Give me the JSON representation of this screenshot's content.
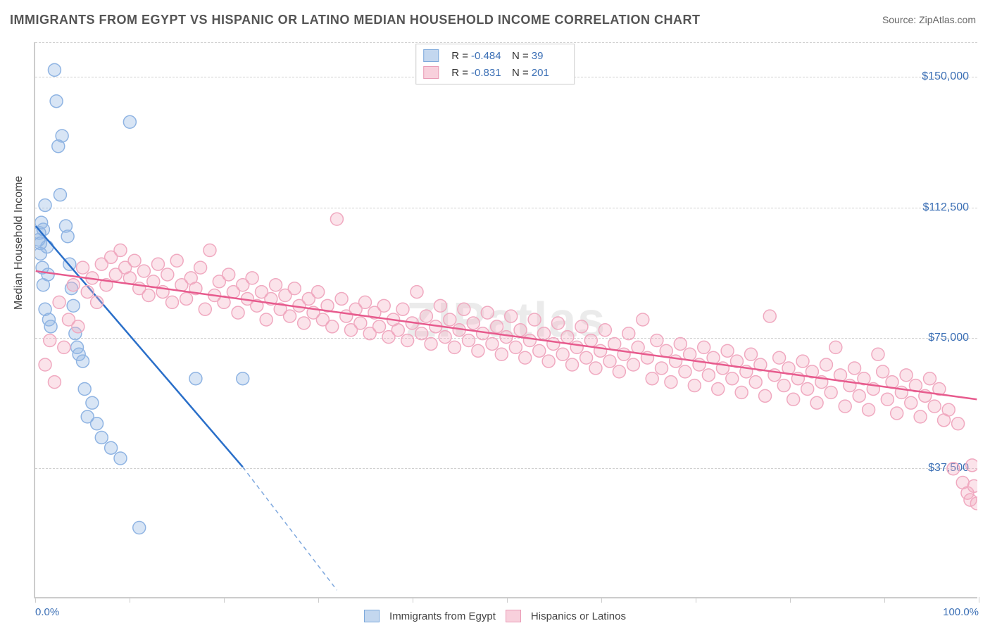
{
  "title": "IMMIGRANTS FROM EGYPT VS HISPANIC OR LATINO MEDIAN HOUSEHOLD INCOME CORRELATION CHART",
  "source": "Source: ZipAtlas.com",
  "watermark": "ZIPatlas",
  "y_axis_label": "Median Household Income",
  "chart": {
    "type": "scatter-with-regression",
    "background_color": "#ffffff",
    "grid_color": "#d0d0d0",
    "axis_color": "#cccccc",
    "label_color": "#3b6fb5",
    "x_min": 0,
    "x_max": 100,
    "y_min": 0,
    "y_max": 160000,
    "y_ticks": [
      37500,
      75000,
      112500,
      150000
    ],
    "y_tick_labels": [
      "$37,500",
      "$75,000",
      "$112,500",
      "$150,000"
    ],
    "x_ticks": [
      0,
      10,
      20,
      30,
      40,
      50,
      60,
      70,
      80,
      90,
      100
    ],
    "x_tick_labels_shown": {
      "0": "0.0%",
      "100": "100.0%"
    },
    "marker_radius": 9,
    "marker_stroke_width": 1.5,
    "series": [
      {
        "name": "Immigrants from Egypt",
        "color_fill": "rgba(142,180,227,0.35)",
        "color_stroke": "#8fb4e3",
        "swatch_fill": "#c3d7ef",
        "swatch_border": "#7da9db",
        "R": "-0.484",
        "N": "39",
        "regression_color": "#2a6fc9",
        "regression": {
          "x1": 0,
          "y1": 107000,
          "x2": 22,
          "y2": 37500,
          "dash_extend_x": 32,
          "dash_extend_y": 2000
        },
        "points": [
          [
            0.3,
            103000
          ],
          [
            0.4,
            105000
          ],
          [
            0.5,
            99000
          ],
          [
            0.5,
            102000
          ],
          [
            0.6,
            108000
          ],
          [
            0.7,
            95000
          ],
          [
            0.8,
            106000
          ],
          [
            0.8,
            90000
          ],
          [
            1.0,
            113000
          ],
          [
            1.2,
            101000
          ],
          [
            1.3,
            93000
          ],
          [
            1.0,
            83000
          ],
          [
            1.4,
            80000
          ],
          [
            1.6,
            78000
          ],
          [
            2.0,
            152000
          ],
          [
            2.2,
            143000
          ],
          [
            2.4,
            130000
          ],
          [
            2.6,
            116000
          ],
          [
            2.8,
            133000
          ],
          [
            3.2,
            107000
          ],
          [
            3.4,
            104000
          ],
          [
            3.6,
            96000
          ],
          [
            3.8,
            89000
          ],
          [
            4.0,
            84000
          ],
          [
            4.2,
            76000
          ],
          [
            4.4,
            72000
          ],
          [
            4.6,
            70000
          ],
          [
            5.0,
            68000
          ],
          [
            5.2,
            60000
          ],
          [
            5.5,
            52000
          ],
          [
            6.0,
            56000
          ],
          [
            6.5,
            50000
          ],
          [
            7.0,
            46000
          ],
          [
            8.0,
            43000
          ],
          [
            9.0,
            40000
          ],
          [
            10.0,
            137000
          ],
          [
            11.0,
            20000
          ],
          [
            17.0,
            63000
          ],
          [
            22.0,
            63000
          ]
        ]
      },
      {
        "name": "Hispanics or Latinos",
        "color_fill": "rgba(244,174,196,0.35)",
        "color_stroke": "#f0a9c0",
        "swatch_fill": "#f8d0dc",
        "swatch_border": "#e99bb6",
        "R": "-0.831",
        "N": "201",
        "regression_color": "#e75a8d",
        "regression": {
          "x1": 0,
          "y1": 94000,
          "x2": 100,
          "y2": 57000
        },
        "points": [
          [
            1.0,
            67000
          ],
          [
            1.5,
            74000
          ],
          [
            2.0,
            62000
          ],
          [
            2.5,
            85000
          ],
          [
            3.0,
            72000
          ],
          [
            3.5,
            80000
          ],
          [
            4.0,
            90000
          ],
          [
            4.5,
            78000
          ],
          [
            5.0,
            95000
          ],
          [
            5.5,
            88000
          ],
          [
            6.0,
            92000
          ],
          [
            6.5,
            85000
          ],
          [
            7.0,
            96000
          ],
          [
            7.5,
            90000
          ],
          [
            8.0,
            98000
          ],
          [
            8.5,
            93000
          ],
          [
            9.0,
            100000
          ],
          [
            9.5,
            95000
          ],
          [
            10.0,
            92000
          ],
          [
            10.5,
            97000
          ],
          [
            11.0,
            89000
          ],
          [
            11.5,
            94000
          ],
          [
            12.0,
            87000
          ],
          [
            12.5,
            91000
          ],
          [
            13.0,
            96000
          ],
          [
            13.5,
            88000
          ],
          [
            14.0,
            93000
          ],
          [
            14.5,
            85000
          ],
          [
            15.0,
            97000
          ],
          [
            15.5,
            90000
          ],
          [
            16.0,
            86000
          ],
          [
            16.5,
            92000
          ],
          [
            17.0,
            89000
          ],
          [
            17.5,
            95000
          ],
          [
            18.0,
            83000
          ],
          [
            18.5,
            100000
          ],
          [
            19.0,
            87000
          ],
          [
            19.5,
            91000
          ],
          [
            20.0,
            85000
          ],
          [
            20.5,
            93000
          ],
          [
            21.0,
            88000
          ],
          [
            21.5,
            82000
          ],
          [
            22.0,
            90000
          ],
          [
            22.5,
            86000
          ],
          [
            23.0,
            92000
          ],
          [
            23.5,
            84000
          ],
          [
            24.0,
            88000
          ],
          [
            24.5,
            80000
          ],
          [
            25.0,
            86000
          ],
          [
            25.5,
            90000
          ],
          [
            26.0,
            83000
          ],
          [
            26.5,
            87000
          ],
          [
            27.0,
            81000
          ],
          [
            27.5,
            89000
          ],
          [
            28.0,
            84000
          ],
          [
            28.5,
            79000
          ],
          [
            29.0,
            86000
          ],
          [
            29.5,
            82000
          ],
          [
            30.0,
            88000
          ],
          [
            30.5,
            80000
          ],
          [
            31.0,
            84000
          ],
          [
            31.5,
            78000
          ],
          [
            32.0,
            109000
          ],
          [
            32.5,
            86000
          ],
          [
            33.0,
            81000
          ],
          [
            33.5,
            77000
          ],
          [
            34.0,
            83000
          ],
          [
            34.5,
            79000
          ],
          [
            35.0,
            85000
          ],
          [
            35.5,
            76000
          ],
          [
            36.0,
            82000
          ],
          [
            36.5,
            78000
          ],
          [
            37.0,
            84000
          ],
          [
            37.5,
            75000
          ],
          [
            38.0,
            80000
          ],
          [
            38.5,
            77000
          ],
          [
            39.0,
            83000
          ],
          [
            39.5,
            74000
          ],
          [
            40.0,
            79000
          ],
          [
            40.5,
            88000
          ],
          [
            41.0,
            76000
          ],
          [
            41.5,
            81000
          ],
          [
            42.0,
            73000
          ],
          [
            42.5,
            78000
          ],
          [
            43.0,
            84000
          ],
          [
            43.5,
            75000
          ],
          [
            44.0,
            80000
          ],
          [
            44.5,
            72000
          ],
          [
            45.0,
            77000
          ],
          [
            45.5,
            83000
          ],
          [
            46.0,
            74000
          ],
          [
            46.5,
            79000
          ],
          [
            47.0,
            71000
          ],
          [
            47.5,
            76000
          ],
          [
            48.0,
            82000
          ],
          [
            48.5,
            73000
          ],
          [
            49.0,
            78000
          ],
          [
            49.5,
            70000
          ],
          [
            50.0,
            75000
          ],
          [
            50.5,
            81000
          ],
          [
            51.0,
            72000
          ],
          [
            51.5,
            77000
          ],
          [
            52.0,
            69000
          ],
          [
            52.5,
            74000
          ],
          [
            53.0,
            80000
          ],
          [
            53.5,
            71000
          ],
          [
            54.0,
            76000
          ],
          [
            54.5,
            68000
          ],
          [
            55.0,
            73000
          ],
          [
            55.5,
            79000
          ],
          [
            56.0,
            70000
          ],
          [
            56.5,
            75000
          ],
          [
            57.0,
            67000
          ],
          [
            57.5,
            72000
          ],
          [
            58.0,
            78000
          ],
          [
            58.5,
            69000
          ],
          [
            59.0,
            74000
          ],
          [
            59.5,
            66000
          ],
          [
            60.0,
            71000
          ],
          [
            60.5,
            77000
          ],
          [
            61.0,
            68000
          ],
          [
            61.5,
            73000
          ],
          [
            62.0,
            65000
          ],
          [
            62.5,
            70000
          ],
          [
            63.0,
            76000
          ],
          [
            63.5,
            67000
          ],
          [
            64.0,
            72000
          ],
          [
            64.5,
            80000
          ],
          [
            65.0,
            69000
          ],
          [
            65.5,
            63000
          ],
          [
            66.0,
            74000
          ],
          [
            66.5,
            66000
          ],
          [
            67.0,
            71000
          ],
          [
            67.5,
            62000
          ],
          [
            68.0,
            68000
          ],
          [
            68.5,
            73000
          ],
          [
            69.0,
            65000
          ],
          [
            69.5,
            70000
          ],
          [
            70.0,
            61000
          ],
          [
            70.5,
            67000
          ],
          [
            71.0,
            72000
          ],
          [
            71.5,
            64000
          ],
          [
            72.0,
            69000
          ],
          [
            72.5,
            60000
          ],
          [
            73.0,
            66000
          ],
          [
            73.5,
            71000
          ],
          [
            74.0,
            63000
          ],
          [
            74.5,
            68000
          ],
          [
            75.0,
            59000
          ],
          [
            75.5,
            65000
          ],
          [
            76.0,
            70000
          ],
          [
            76.5,
            62000
          ],
          [
            77.0,
            67000
          ],
          [
            77.5,
            58000
          ],
          [
            78.0,
            81000
          ],
          [
            78.5,
            64000
          ],
          [
            79.0,
            69000
          ],
          [
            79.5,
            61000
          ],
          [
            80.0,
            66000
          ],
          [
            80.5,
            57000
          ],
          [
            81.0,
            63000
          ],
          [
            81.5,
            68000
          ],
          [
            82.0,
            60000
          ],
          [
            82.5,
            65000
          ],
          [
            83.0,
            56000
          ],
          [
            83.5,
            62000
          ],
          [
            84.0,
            67000
          ],
          [
            84.5,
            59000
          ],
          [
            85.0,
            72000
          ],
          [
            85.5,
            64000
          ],
          [
            86.0,
            55000
          ],
          [
            86.5,
            61000
          ],
          [
            87.0,
            66000
          ],
          [
            87.5,
            58000
          ],
          [
            88.0,
            63000
          ],
          [
            88.5,
            54000
          ],
          [
            89.0,
            60000
          ],
          [
            89.5,
            70000
          ],
          [
            90.0,
            65000
          ],
          [
            90.5,
            57000
          ],
          [
            91.0,
            62000
          ],
          [
            91.5,
            53000
          ],
          [
            92.0,
            59000
          ],
          [
            92.5,
            64000
          ],
          [
            93.0,
            56000
          ],
          [
            93.5,
            61000
          ],
          [
            94.0,
            52000
          ],
          [
            94.5,
            58000
          ],
          [
            95.0,
            63000
          ],
          [
            95.5,
            55000
          ],
          [
            96.0,
            60000
          ],
          [
            96.5,
            51000
          ],
          [
            97.0,
            54000
          ],
          [
            97.5,
            37000
          ],
          [
            98.0,
            50000
          ],
          [
            98.5,
            33000
          ],
          [
            99.0,
            30000
          ],
          [
            99.3,
            28000
          ],
          [
            99.5,
            38000
          ],
          [
            99.7,
            32000
          ],
          [
            100.0,
            27000
          ]
        ]
      }
    ]
  },
  "bottom_legend": {
    "series1_label": "Immigrants from Egypt",
    "series2_label": "Hispanics or Latinos"
  }
}
